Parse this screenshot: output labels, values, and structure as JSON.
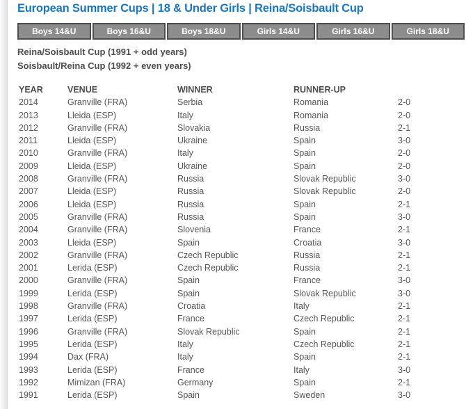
{
  "page": {
    "title": "European Summer Cups | 18 & Under Girls | Reina/Soisbault Cup"
  },
  "tabs": {
    "items": [
      {
        "label": "Boys 14&U"
      },
      {
        "label": "Boys 16&U"
      },
      {
        "label": "Boys 18&U"
      },
      {
        "label": "Girls 14&U"
      },
      {
        "label": "Girls 16&U"
      },
      {
        "label": "Girls 18&U"
      }
    ]
  },
  "intro": {
    "line1": "Reina/Soisbault Cup (1991 + odd years)",
    "line2": "Soisbault/Reina Cup (1992 + even years)"
  },
  "results": {
    "headers": [
      "YEAR",
      "VENUE",
      "WINNER",
      "RUNNER-UP",
      ""
    ],
    "rows": [
      {
        "year": "2014",
        "venue": "Granville (FRA)",
        "winner": "Serbia",
        "runner_up": "Romania",
        "score": "2-0"
      },
      {
        "year": "2013",
        "venue": "Lleida (ESP)",
        "winner": "Italy",
        "runner_up": "Romania",
        "score": "2-0"
      },
      {
        "year": "2012",
        "venue": "Granville (FRA)",
        "winner": "Slovakia",
        "runner_up": "Russia",
        "score": "2-1"
      },
      {
        "year": "2011",
        "venue": "Lleida (ESP)",
        "winner": "Ukraine",
        "runner_up": "Spain",
        "score": "3-0"
      },
      {
        "year": "2010",
        "venue": "Granville (FRA)",
        "winner": "Italy",
        "runner_up": "Spain",
        "score": "2-0"
      },
      {
        "year": "2009",
        "venue": "Lleida (ESP)",
        "winner": "Ukraine",
        "runner_up": "Spain",
        "score": "2-0"
      },
      {
        "year": "2008",
        "venue": "Granville (FRA)",
        "winner": "Russia",
        "runner_up": "Slovak Republic",
        "score": "3-0"
      },
      {
        "year": "2007",
        "venue": "Lleida (ESP)",
        "winner": "Russia",
        "runner_up": "Slovak Republic",
        "score": "2-0"
      },
      {
        "year": "2006",
        "venue": "Lleida (ESP)",
        "winner": "Russia",
        "runner_up": "Spain",
        "score": "2-1"
      },
      {
        "year": "2005",
        "venue": "Granville (FRA)",
        "winner": "Russia",
        "runner_up": "Spain",
        "score": "3-0"
      },
      {
        "year": "2004",
        "venue": "Granville (FRA)",
        "winner": "Slovenia",
        "runner_up": "France",
        "score": "2-1"
      },
      {
        "year": "2003",
        "venue": "Lleida (ESP)",
        "winner": "Spain",
        "runner_up": "Croatia",
        "score": "3-0"
      },
      {
        "year": "2002",
        "venue": "Granville (FRA)",
        "winner": "Czech Republic",
        "runner_up": "Russia",
        "score": "2-1"
      },
      {
        "year": "2001",
        "venue": "Lerida (ESP)",
        "winner": "Czech Republic",
        "runner_up": "Russia",
        "score": "2-1"
      },
      {
        "year": "2000",
        "venue": "Granville (FRA)",
        "winner": "Spain",
        "runner_up": "France",
        "score": "3-0"
      },
      {
        "year": "1999",
        "venue": "Lerida (ESP)",
        "winner": "Spain",
        "runner_up": "Slovak Republic",
        "score": "3-0"
      },
      {
        "year": "1998",
        "venue": "Granville (FRA)",
        "winner": "Croatia",
        "runner_up": "Italy",
        "score": "2-1"
      },
      {
        "year": "1997",
        "venue": "Lerida (ESP)",
        "winner": "France",
        "runner_up": "Czech Republic",
        "score": "2-1"
      },
      {
        "year": "1996",
        "venue": "Granville (FRA)",
        "winner": "Slovak Republic",
        "runner_up": "Spain",
        "score": "2-1"
      },
      {
        "year": "1995",
        "venue": "Lerida (ESP)",
        "winner": "Italy",
        "runner_up": "Czech Republic",
        "score": "2-1"
      },
      {
        "year": "1994",
        "venue": "Dax (FRA)",
        "winner": "Italy",
        "runner_up": "Spain",
        "score": "2-1"
      },
      {
        "year": "1993",
        "venue": "Lerida (ESP)",
        "winner": "France",
        "runner_up": "Italy",
        "score": "3-0"
      },
      {
        "year": "1992",
        "venue": "Mimizan (FRA)",
        "winner": "Germany",
        "runner_up": "Spain",
        "score": "2-1"
      },
      {
        "year": "1991",
        "venue": "Lerida (ESP)",
        "winner": "Spain",
        "runner_up": "Sweden",
        "score": "3-0"
      }
    ]
  },
  "colors": {
    "title_blue": "#1a76bd",
    "tab_gray": "#8d8d8d",
    "tab_border": "#4e4e4e",
    "heading_text": "#4d4d4d",
    "body_text": "#565656"
  }
}
